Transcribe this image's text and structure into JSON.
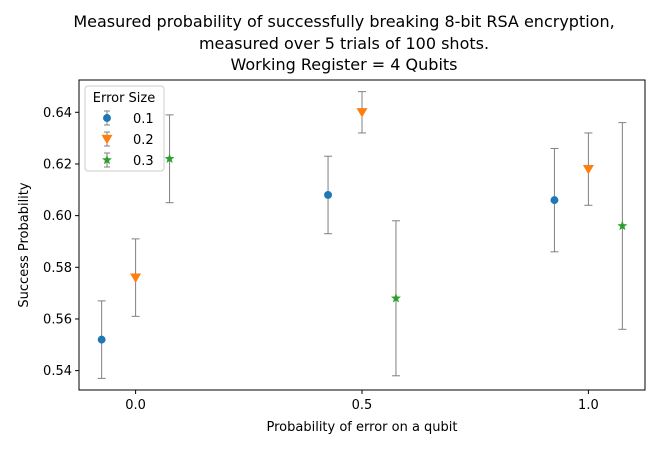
{
  "chart_data": {
    "type": "scatter",
    "title_lines": [
      "Measured probability of successfully breaking 8-bit RSA encryption,",
      "measured over 5 trials of 100 shots.",
      "Working Register = 4 Qubits"
    ],
    "xlabel": "Probability of error on a qubit",
    "ylabel": "Success Probability",
    "xlim": [
      -0.125,
      1.125
    ],
    "ylim": [
      0.5325,
      0.6525
    ],
    "x_ticks": [
      0.0,
      0.5,
      1.0
    ],
    "x_tick_labels": [
      "0.0",
      "0.5",
      "1.0"
    ],
    "y_ticks": [
      0.54,
      0.56,
      0.58,
      0.6,
      0.62,
      0.64
    ],
    "y_tick_labels": [
      "0.54",
      "0.56",
      "0.58",
      "0.60",
      "0.62",
      "0.64"
    ],
    "grid": false,
    "legend": {
      "title": "Error Size",
      "placement": "top-left"
    },
    "errorbar_color": "#808080",
    "series": [
      {
        "name": "0.1",
        "color": "#1f77b4",
        "marker": "circle",
        "x": [
          -0.075,
          0.425,
          0.925
        ],
        "y": [
          0.552,
          0.608,
          0.606
        ],
        "err_low": [
          0.537,
          0.593,
          0.586
        ],
        "err_high": [
          0.567,
          0.623,
          0.626
        ]
      },
      {
        "name": "0.2",
        "color": "#ff7f0e",
        "marker": "triangle-down",
        "x": [
          0.0,
          0.5,
          1.0
        ],
        "y": [
          0.576,
          0.64,
          0.618
        ],
        "err_low": [
          0.561,
          0.632,
          0.604
        ],
        "err_high": [
          0.591,
          0.648,
          0.632
        ]
      },
      {
        "name": "0.3",
        "color": "#2ca02c",
        "marker": "star",
        "x": [
          0.075,
          0.575,
          1.075
        ],
        "y": [
          0.622,
          0.568,
          0.596
        ],
        "err_low": [
          0.605,
          0.538,
          0.556
        ],
        "err_high": [
          0.639,
          0.598,
          0.636
        ]
      }
    ]
  }
}
